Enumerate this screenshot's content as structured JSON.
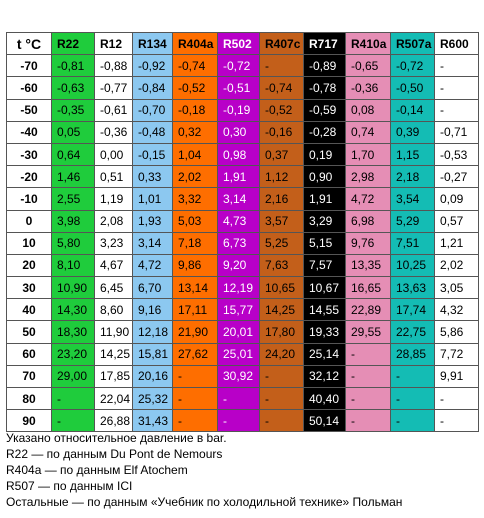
{
  "table": {
    "corner": "t °C",
    "columns": [
      {
        "name": "R22",
        "bg": "#1fcc3c",
        "fg": "#000000"
      },
      {
        "name": "R12",
        "bg": "#ffffff",
        "fg": "#000000"
      },
      {
        "name": "R134",
        "bg": "#8cc8f0",
        "fg": "#000000"
      },
      {
        "name": "R404a",
        "bg": "#fe6e00",
        "fg": "#000000"
      },
      {
        "name": "R502",
        "bg": "#b800c8",
        "fg": "#ffffff"
      },
      {
        "name": "R407c",
        "bg": "#c35f1a",
        "fg": "#000000"
      },
      {
        "name": "R717",
        "bg": "#000000",
        "fg": "#ffffff"
      },
      {
        "name": "R410a",
        "bg": "#e58eb5",
        "fg": "#000000"
      },
      {
        "name": "R507a",
        "bg": "#14bcb4",
        "fg": "#000000"
      },
      {
        "name": "R600",
        "bg": "#ffffff",
        "fg": "#000000"
      }
    ],
    "rows": [
      {
        "t": "-70",
        "v": [
          "-0,81",
          "-0,88",
          "-0,92",
          "-0,74",
          "-0,72",
          "-",
          "-0,89",
          "-0,65",
          "-0,72",
          "-"
        ]
      },
      {
        "t": "-60",
        "v": [
          "-0,63",
          "-0,77",
          "-0,84",
          "-0,52",
          "-0,51",
          "-0,74",
          "-0,78",
          "-0,36",
          "-0,50",
          "-"
        ]
      },
      {
        "t": "-50",
        "v": [
          "-0,35",
          "-0,61",
          "-0,70",
          "-0,18",
          "-0,19",
          "-0,52",
          "-0,59",
          "0,08",
          "-0,14",
          "-"
        ]
      },
      {
        "t": "-40",
        "v": [
          "0,05",
          "-0,36",
          "-0,48",
          "0,32",
          "0,30",
          "-0,16",
          "-0,28",
          "0,74",
          "0,39",
          "-0,71"
        ]
      },
      {
        "t": "-30",
        "v": [
          "0,64",
          "0,00",
          "-0,15",
          "1,04",
          "0,98",
          "0,37",
          "0,19",
          "1,70",
          "1,15",
          "-0,53"
        ]
      },
      {
        "t": "-20",
        "v": [
          "1,46",
          "0,51",
          "0,33",
          "2,02",
          "1,91",
          "1,12",
          "0,90",
          "2,98",
          "2,18",
          "-0,27"
        ]
      },
      {
        "t": "-10",
        "v": [
          "2,55",
          "1,19",
          "1,01",
          "3,32",
          "3,14",
          "2,16",
          "1,91",
          "4,72",
          "3,54",
          "0,09"
        ]
      },
      {
        "t": "0",
        "v": [
          "3,98",
          "2,08",
          "1,93",
          "5,03",
          "4,73",
          "3,57",
          "3,29",
          "6,98",
          "5,29",
          "0,57"
        ]
      },
      {
        "t": "10",
        "v": [
          "5,80",
          "3,23",
          "3,14",
          "7,18",
          "6,73",
          "5,25",
          "5,15",
          "9,76",
          "7,51",
          "1,21"
        ]
      },
      {
        "t": "20",
        "v": [
          "8,10",
          "4,67",
          "4,72",
          "9,86",
          "9,20",
          "7,63",
          "7,57",
          "13,35",
          "10,25",
          "2,02"
        ]
      },
      {
        "t": "30",
        "v": [
          "10,90",
          "6,45",
          "6,70",
          "13,14",
          "12,19",
          "10,65",
          "10,67",
          "16,65",
          "13,63",
          "3,05"
        ]
      },
      {
        "t": "40",
        "v": [
          "14,30",
          "8,60",
          "9,16",
          "17,11",
          "15,77",
          "14,25",
          "14,55",
          "22,89",
          "17,74",
          "4,32"
        ]
      },
      {
        "t": "50",
        "v": [
          "18,30",
          "11,90",
          "12,18",
          "21,90",
          "20,01",
          "17,80",
          "19,33",
          "29,55",
          "22,75",
          "5,86"
        ]
      },
      {
        "t": "60",
        "v": [
          "23,20",
          "14,25",
          "15,81",
          "27,62",
          "25,01",
          "24,20",
          "25,14",
          "-",
          "28,85",
          "7,72"
        ]
      },
      {
        "t": "70",
        "v": [
          "29,00",
          "17,85",
          "20,16",
          "-",
          "30,92",
          "-",
          "32,12",
          "-",
          "-",
          "9,91"
        ]
      },
      {
        "t": "80",
        "v": [
          "-",
          "22,04",
          "25,32",
          "-",
          "-",
          "-",
          "40,40",
          "-",
          "-",
          "-"
        ]
      },
      {
        "t": "90",
        "v": [
          "-",
          "26,88",
          "31,43",
          "-",
          "-",
          "-",
          "50,14",
          "-",
          "-",
          "-"
        ]
      }
    ]
  },
  "notes": [
    "Указано относительное давление в bar.",
    "R22 — по данным Du Pont de Nemours",
    "R404a — по данным Elf Atochem",
    "R507 — по данным ICI",
    "Остальные — по данным «Учебник по холодильной технике» Польман"
  ]
}
